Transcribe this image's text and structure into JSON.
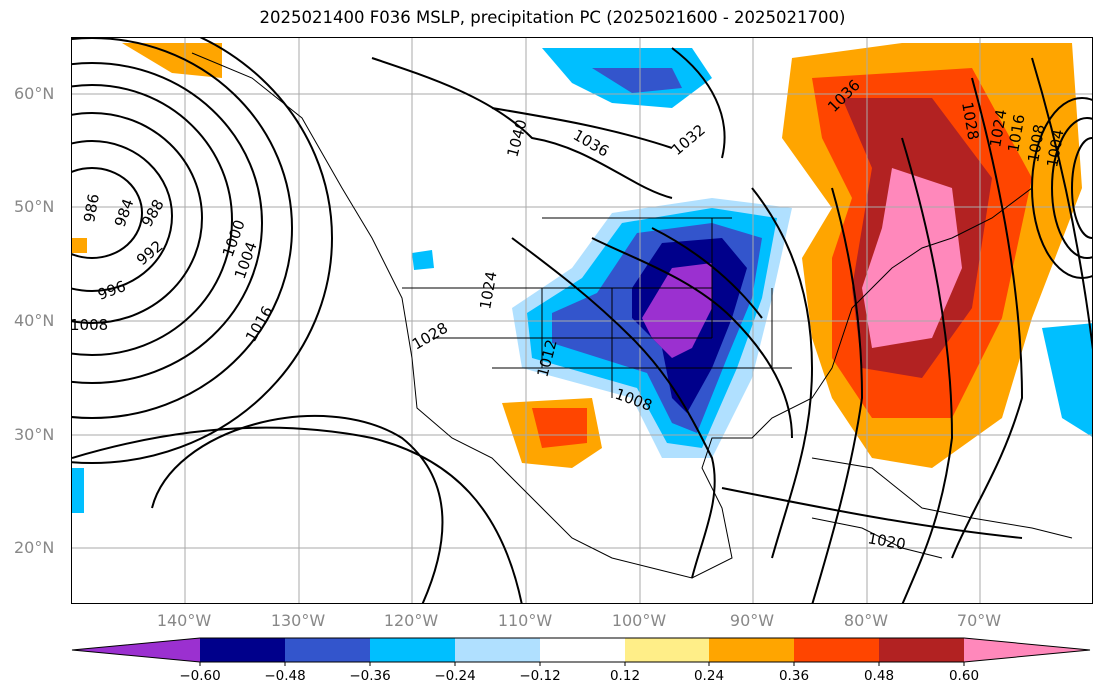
{
  "title": "2025021400 F036 MSLP, precipitation PC (2025021600 - 2025021700)",
  "lat_labels": [
    "60°N",
    "50°N",
    "40°N",
    "30°N",
    "20°N"
  ],
  "lon_labels": [
    "140°W",
    "130°W",
    "120°W",
    "110°W",
    "100°W",
    "90°W",
    "80°W",
    "70°W"
  ],
  "colorbar": {
    "ticks": [
      "−0.60",
      "−0.48",
      "−0.36",
      "−0.24",
      "−0.12",
      "0.12",
      "0.24",
      "0.36",
      "0.48",
      "0.60"
    ],
    "colors": [
      "#9b30d0",
      "#00008b",
      "#3355cc",
      "#00bfff",
      "#b0e0ff",
      "#ffffff",
      "#ffee88",
      "#ffa500",
      "#ff4500",
      "#b22222",
      "#ff88bb"
    ]
  },
  "isobar_labels": [
    {
      "text": "986"
    },
    {
      "text": "984"
    },
    {
      "text": "988"
    },
    {
      "text": "992"
    },
    {
      "text": "996"
    },
    {
      "text": "1000"
    },
    {
      "text": "1004"
    },
    {
      "text": "1008"
    },
    {
      "text": "1016"
    },
    {
      "text": "1040"
    },
    {
      "text": "1036"
    },
    {
      "text": "1032"
    },
    {
      "text": "1024"
    },
    {
      "text": "1028"
    },
    {
      "text": "1012"
    },
    {
      "text": "1008"
    },
    {
      "text": "1020"
    },
    {
      "text": "1036"
    },
    {
      "text": "1028"
    },
    {
      "text": "1024"
    },
    {
      "text": "1016"
    },
    {
      "text": "1008"
    },
    {
      "text": "1004"
    }
  ]
}
